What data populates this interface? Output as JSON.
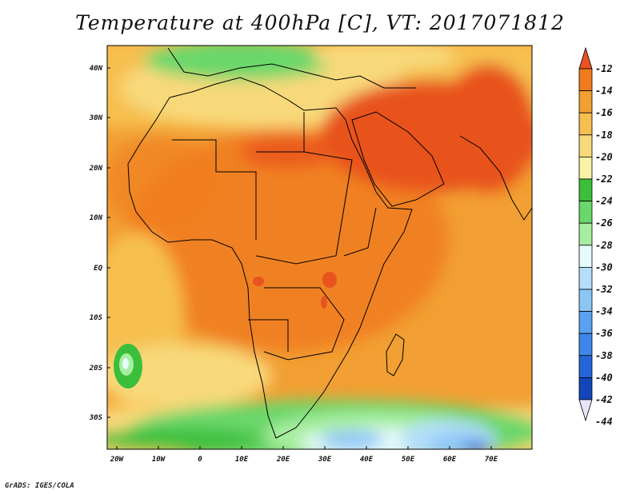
{
  "title": "Temperature at 400hPa [C], VT: 2017071812",
  "credit": "GrADS: IGES/COLA",
  "lat_labels": [
    "40N",
    "30N",
    "20N",
    "10N",
    "EQ",
    "10S",
    "20S",
    "30S"
  ],
  "lon_labels": [
    "20W",
    "10W",
    "0",
    "10E",
    "20E",
    "30E",
    "40E",
    "50E",
    "60E",
    "70E"
  ],
  "colorbar": {
    "labels": [
      "-12",
      "-14",
      "-16",
      "-18",
      "-20",
      "-22",
      "-24",
      "-26",
      "-28",
      "-30",
      "-32",
      "-34",
      "-36",
      "-38",
      "-40",
      "-42",
      "-44"
    ],
    "colors": [
      "#e8531f",
      "#f07b1d",
      "#f29f33",
      "#f6bf4f",
      "#f8d97a",
      "#fbf2a8",
      "#3bbf3a",
      "#6ad76a",
      "#a8eea0",
      "#e6fbfb",
      "#b4def9",
      "#8cc6f5",
      "#5aa2ef",
      "#3e86ea",
      "#2466d9",
      "#1246b9",
      "#0a1c7a"
    ]
  },
  "colors": {
    "warm_core": "#e8531f",
    "cold_south": "#2466d9"
  }
}
